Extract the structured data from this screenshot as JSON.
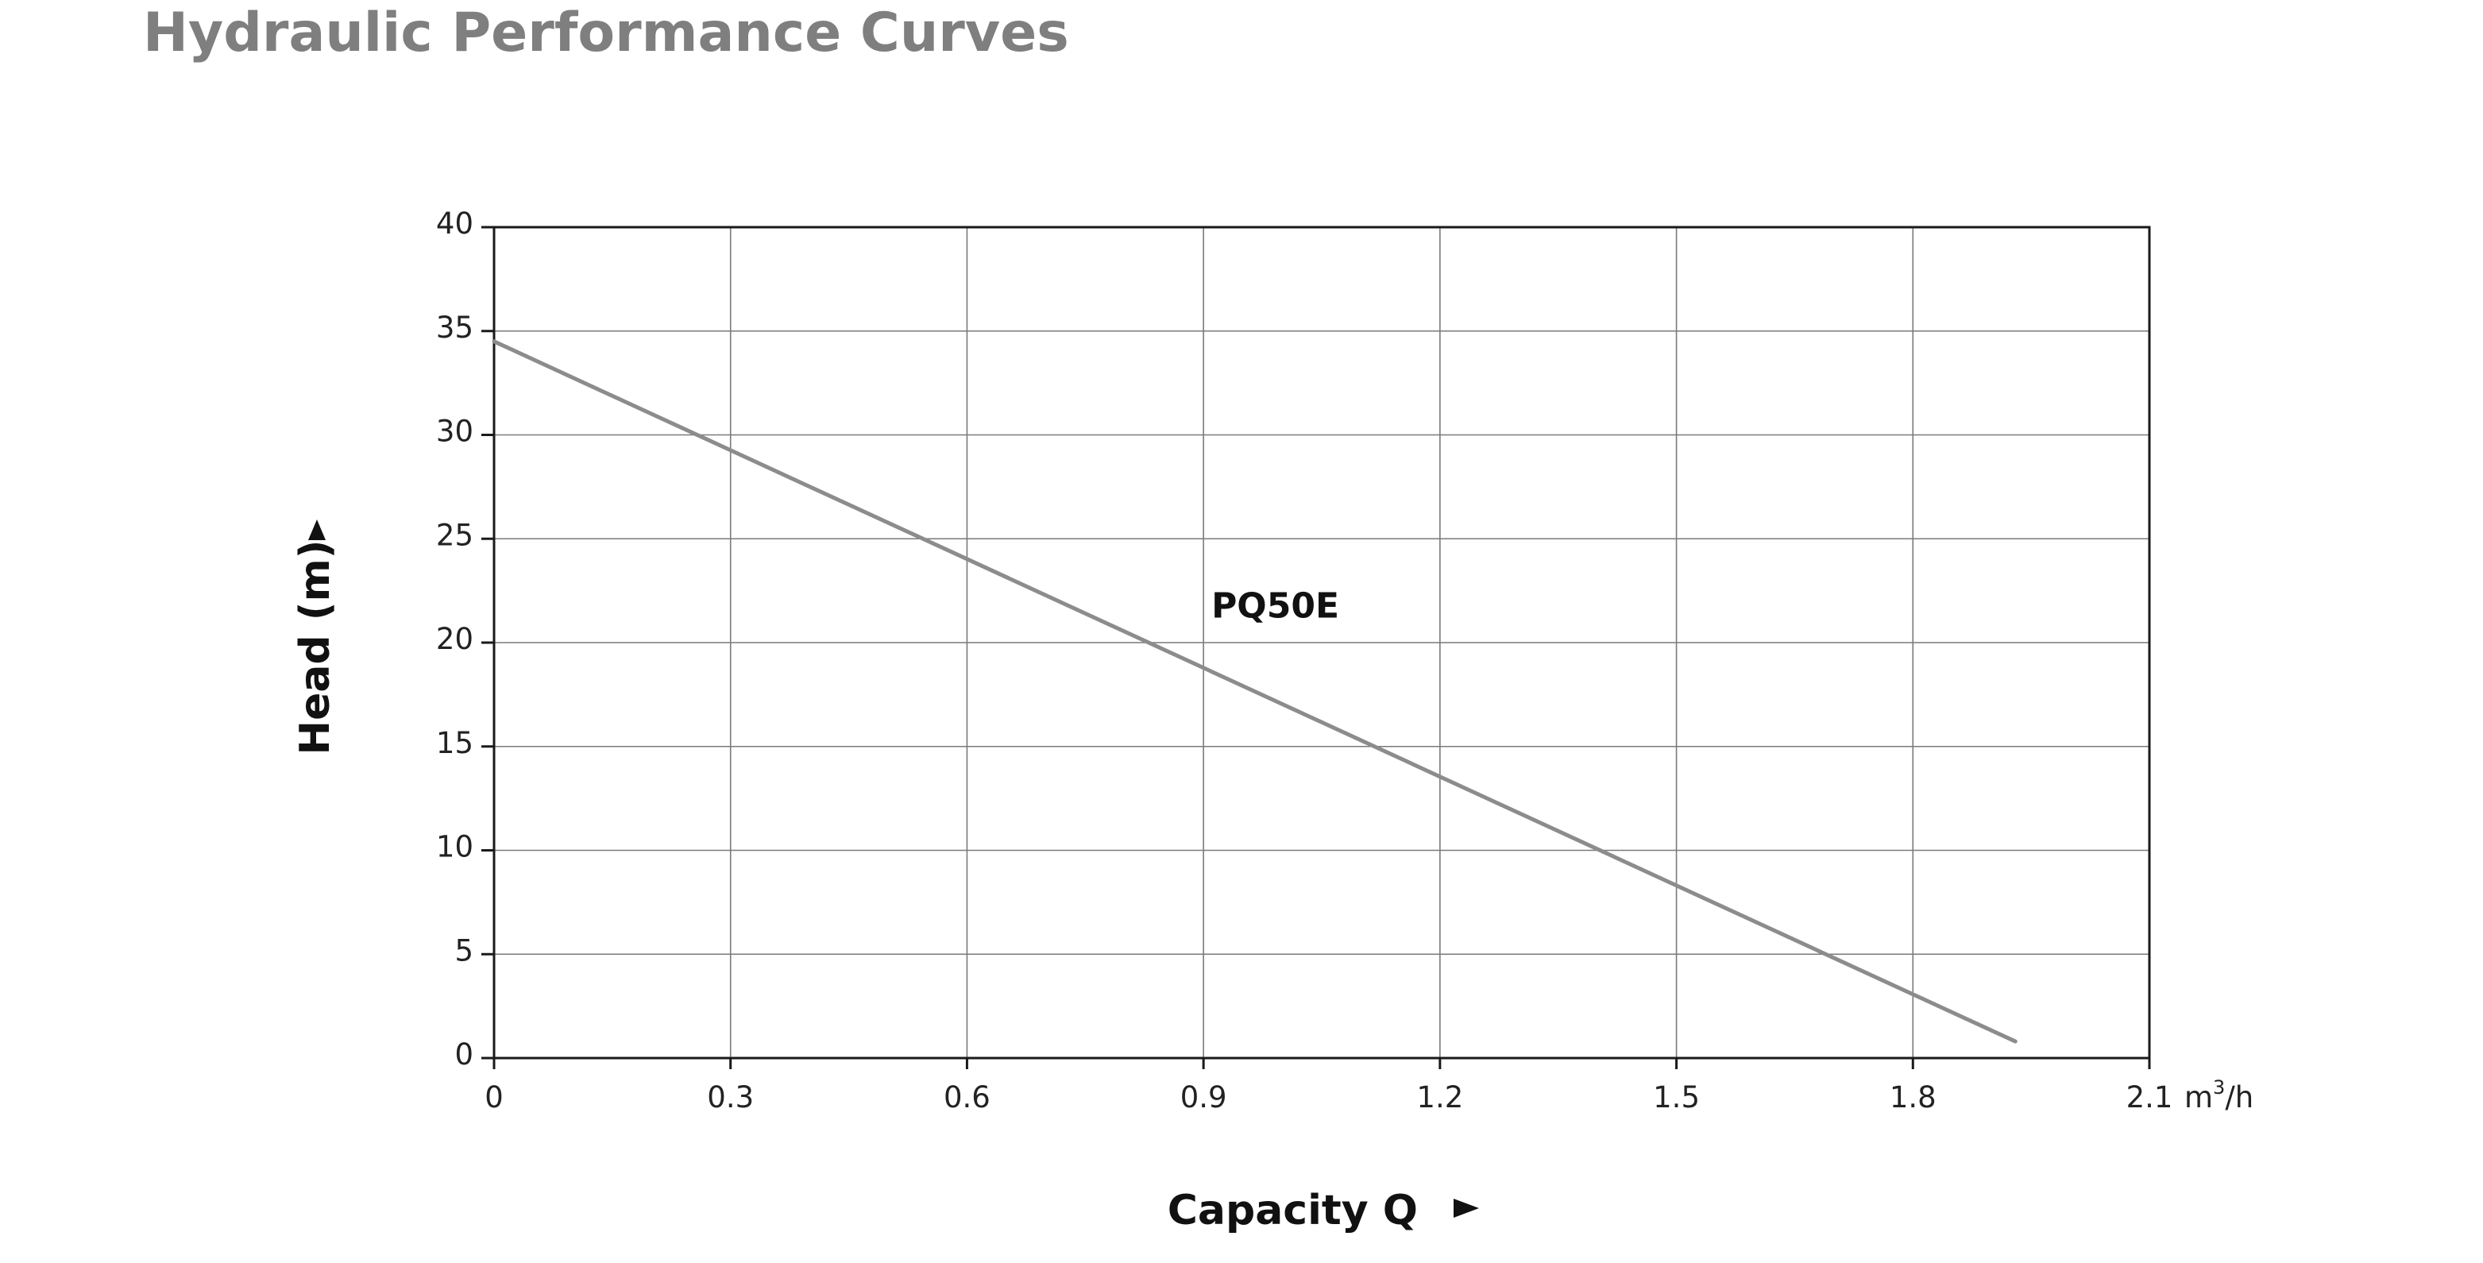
{
  "title": "Hydraulic Performance Curves",
  "chart_data": {
    "type": "line",
    "xlabel": "Capacity Q",
    "ylabel": "Head (m)",
    "x_unit": "m³/h",
    "x_unit_base": "m",
    "x_unit_sup": "3",
    "x_unit_tail": "/h",
    "xlim": [
      0,
      2.1
    ],
    "ylim": [
      0,
      40
    ],
    "x_ticks": [
      0,
      0.3,
      0.6,
      0.9,
      1.2,
      1.5,
      1.8,
      2.1
    ],
    "x_tick_labels": [
      "0",
      "0.3",
      "0.6",
      "0.9",
      "1.2",
      "1.5",
      "1.8",
      "2.1"
    ],
    "y_ticks": [
      0,
      5,
      10,
      15,
      20,
      25,
      30,
      35,
      40
    ],
    "y_tick_labels": [
      "0",
      "5",
      "10",
      "15",
      "20",
      "25",
      "30",
      "35",
      "40"
    ],
    "grid": true,
    "series": [
      {
        "name": "PQ50E",
        "color": "#8c8c8c",
        "x": [
          0,
          1.93
        ],
        "y": [
          34.5,
          0.8
        ]
      }
    ]
  }
}
